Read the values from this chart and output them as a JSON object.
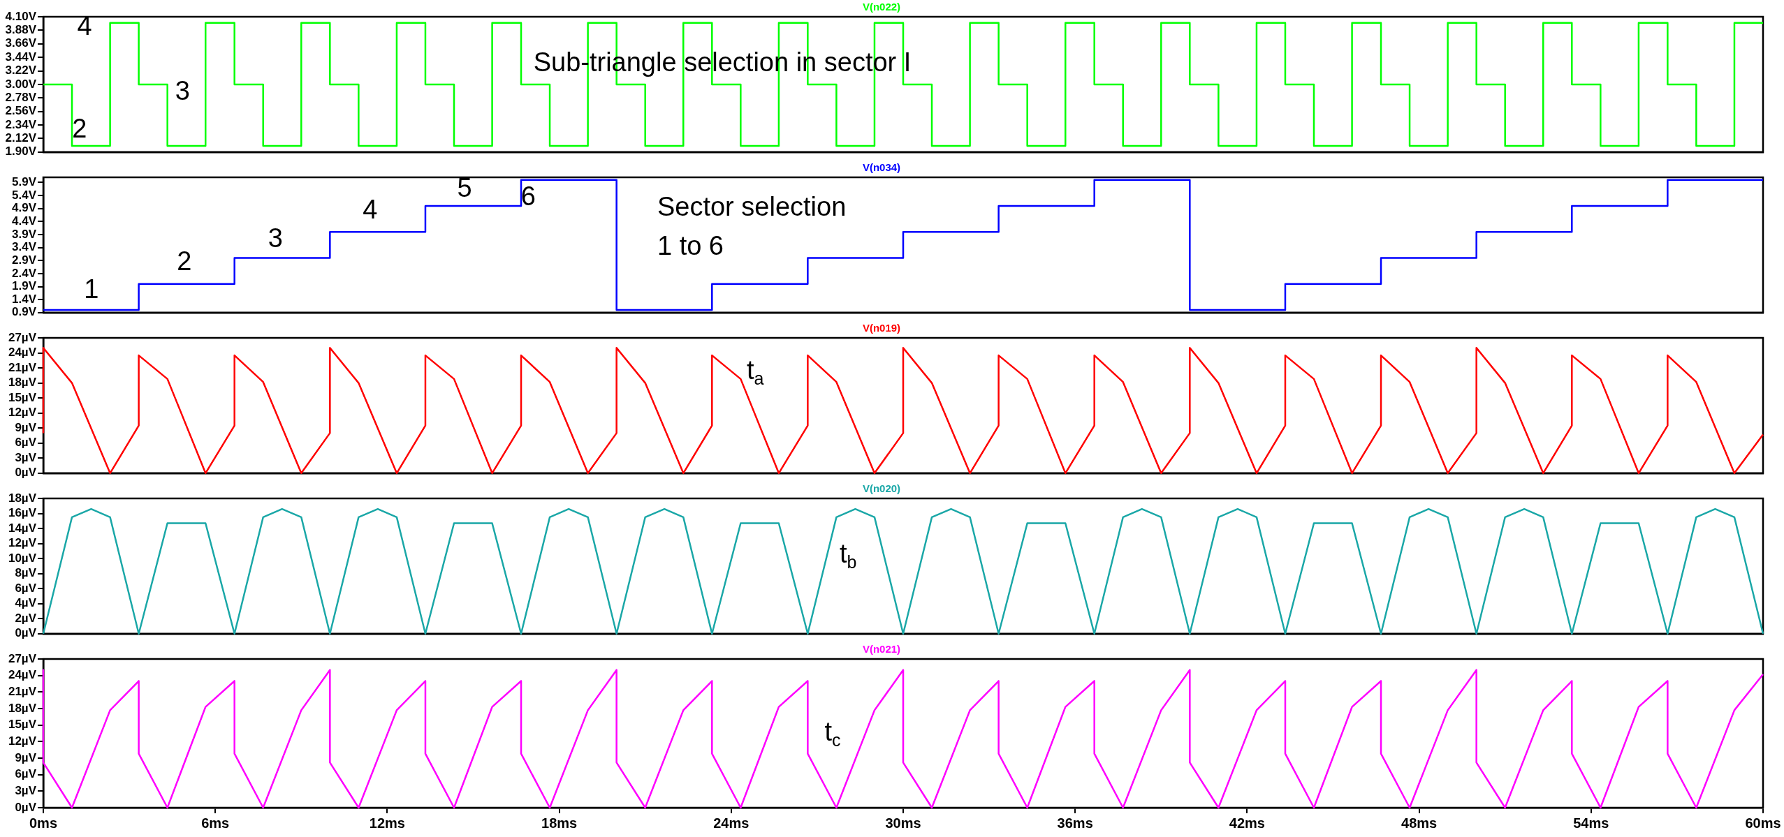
{
  "chart_data": [
    {
      "type": "step",
      "title": "V(n022)",
      "xlim": [
        0,
        60
      ],
      "ylim": [
        1.9,
        4.1
      ],
      "yticks": [
        {
          "value": 1.9,
          "label": "1.90V"
        },
        {
          "value": 2.12,
          "label": "2.12V"
        },
        {
          "value": 2.34,
          "label": "2.34V"
        },
        {
          "value": 2.56,
          "label": "2.56V"
        },
        {
          "value": 2.78,
          "label": "2.78V"
        },
        {
          "value": 3.0,
          "label": "3.00V"
        },
        {
          "value": 3.22,
          "label": "3.22V"
        },
        {
          "value": 3.44,
          "label": "3.44V"
        },
        {
          "value": 3.66,
          "label": "3.66V"
        },
        {
          "value": 3.88,
          "label": "3.88V"
        },
        {
          "value": 4.1,
          "label": "4.10V"
        }
      ],
      "tick_labels": "y",
      "series": [
        {
          "color": "#00ff00",
          "x": [
            0,
            1,
            2.33,
            3.33,
            4.33,
            5.66,
            6.67,
            7.67,
            9,
            10,
            11,
            12.33,
            13.33,
            14.33,
            15.66,
            16.67,
            17.67,
            19,
            20,
            21,
            22.33,
            23.33,
            24.33,
            25.66,
            26.67,
            27.67,
            29,
            30,
            31,
            32.33,
            33.33,
            34.33,
            35.66,
            36.67,
            37.67,
            39,
            40,
            41,
            42.33,
            43.33,
            44.33,
            45.66,
            46.67,
            47.67,
            49,
            50,
            51,
            52.33,
            53.33,
            54.33,
            55.66,
            56.67,
            57.67,
            59,
            60
          ],
          "values": [
            3,
            2,
            4,
            3,
            2,
            4,
            3,
            2,
            4,
            3,
            2,
            4,
            3,
            2,
            4,
            3,
            2,
            4,
            3,
            2,
            4,
            3,
            2,
            4,
            3,
            2,
            4,
            3,
            2,
            4,
            3,
            2,
            4,
            3,
            2,
            4,
            3,
            2,
            4,
            3,
            2,
            4,
            3,
            2,
            4,
            3,
            2,
            4,
            3,
            2,
            4,
            3,
            2,
            4,
            4
          ]
        }
      ],
      "annotations": [
        "Sub-triangle selection in sector I",
        "4",
        "3",
        "2"
      ]
    },
    {
      "type": "step",
      "title": "V(n034)",
      "xlim": [
        0,
        60
      ],
      "ylim": [
        0.9,
        6.1
      ],
      "yticks": [
        {
          "value": 0.9,
          "label": "0.9V"
        },
        {
          "value": 1.4,
          "label": "1.4V"
        },
        {
          "value": 1.9,
          "label": "1.9V"
        },
        {
          "value": 2.4,
          "label": "2.4V"
        },
        {
          "value": 2.9,
          "label": "2.9V"
        },
        {
          "value": 3.4,
          "label": "3.4V"
        },
        {
          "value": 3.9,
          "label": "3.9V"
        },
        {
          "value": 4.4,
          "label": "4.4V"
        },
        {
          "value": 4.9,
          "label": "4.9V"
        },
        {
          "value": 5.4,
          "label": "5.4V"
        },
        {
          "value": 5.9,
          "label": "5.9V"
        }
      ],
      "tick_labels": "y",
      "series": [
        {
          "color": "#0000ff",
          "x": [
            0,
            3.33,
            6.67,
            10,
            13.33,
            16.67,
            20,
            23.33,
            26.67,
            30,
            33.33,
            36.67,
            40,
            43.33,
            46.67,
            50,
            53.33,
            56.67,
            60
          ],
          "values": [
            1,
            2,
            3,
            4,
            5,
            6,
            1,
            2,
            3,
            4,
            5,
            6,
            1,
            2,
            3,
            4,
            5,
            6,
            6
          ]
        }
      ],
      "annotations": [
        "Sector selection\n1 to 6",
        "1",
        "2",
        "3",
        "4",
        "5",
        "6"
      ]
    },
    {
      "type": "line",
      "title": "V(n019)",
      "xlim": [
        0,
        60
      ],
      "ylim": [
        0,
        27
      ],
      "yticks": [
        {
          "value": 0,
          "label": "0µV"
        },
        {
          "value": 3,
          "label": "3µV"
        },
        {
          "value": 6,
          "label": "6µV"
        },
        {
          "value": 9,
          "label": "9µV"
        },
        {
          "value": 12,
          "label": "12µV"
        },
        {
          "value": 15,
          "label": "15µV"
        },
        {
          "value": 18,
          "label": "18µV"
        },
        {
          "value": 21,
          "label": "21µV"
        },
        {
          "value": 24,
          "label": "24µV"
        },
        {
          "value": 27,
          "label": "27µV"
        }
      ],
      "tick_labels": "y",
      "series": [
        {
          "color": "#ff0000",
          "x": [
            0,
            0,
            1,
            2.33,
            3.33,
            3.33,
            4.33,
            5.66,
            6.67,
            6.67,
            7.67,
            9,
            10,
            10,
            11,
            12.33,
            13.33,
            13.33,
            14.33,
            15.66,
            16.67,
            16.67,
            17.67,
            19,
            20,
            20,
            21,
            22.33,
            23.33,
            23.33,
            24.33,
            25.66,
            26.67,
            26.67,
            27.67,
            29,
            30,
            30,
            31,
            32.33,
            33.33,
            33.33,
            34.33,
            35.66,
            36.67,
            36.67,
            37.67,
            39,
            40,
            40,
            41,
            42.33,
            43.33,
            43.33,
            44.33,
            45.66,
            46.67,
            46.67,
            47.67,
            49,
            50,
            50,
            51,
            52.33,
            53.33,
            53.33,
            54.33,
            55.66,
            56.67,
            56.67,
            57.67,
            59,
            60
          ],
          "values": [
            8,
            25,
            18,
            0,
            9.5,
            23.5,
            18.8,
            0,
            9.5,
            23.5,
            18.2,
            0,
            8,
            25,
            18,
            0,
            9.5,
            23.5,
            18.8,
            0,
            9.5,
            23.5,
            18.2,
            0,
            8,
            25,
            18,
            0,
            9.5,
            23.5,
            18.8,
            0,
            9.5,
            23.5,
            18.2,
            0,
            8,
            25,
            18,
            0,
            9.5,
            23.5,
            18.8,
            0,
            9.5,
            23.5,
            18.2,
            0,
            8,
            25,
            18,
            0,
            9.5,
            23.5,
            18.8,
            0,
            9.5,
            23.5,
            18.2,
            0,
            8,
            25,
            18,
            0,
            9.5,
            23.5,
            18.8,
            0,
            9.5,
            23.5,
            18.2,
            0,
            7.7
          ]
        }
      ],
      "annotations": [
        "t$_{a}$"
      ]
    },
    {
      "type": "line",
      "title": "V(n020)",
      "xlim": [
        0,
        60
      ],
      "ylim": [
        0,
        18
      ],
      "yticks": [
        {
          "value": 0,
          "label": "0µV"
        },
        {
          "value": 2,
          "label": "2µV"
        },
        {
          "value": 4,
          "label": "4µV"
        },
        {
          "value": 6,
          "label": "6µV"
        },
        {
          "value": 8,
          "label": "8µV"
        },
        {
          "value": 10,
          "label": "10µV"
        },
        {
          "value": 12,
          "label": "12µV"
        },
        {
          "value": 14,
          "label": "14µV"
        },
        {
          "value": 16,
          "label": "16µV"
        },
        {
          "value": 18,
          "label": "18µV"
        }
      ],
      "tick_labels": "y",
      "series": [
        {
          "color": "#1aa7a7",
          "x": [
            0,
            1,
            1.67,
            2.33,
            3.33,
            4.33,
            5.66,
            6.67,
            7.67,
            8.33,
            9,
            10,
            11,
            11.67,
            12.33,
            13.33,
            14.33,
            15.66,
            16.67,
            17.67,
            18.33,
            19,
            20,
            21,
            21.67,
            22.33,
            23.33,
            24.33,
            25.66,
            26.67,
            27.67,
            28.33,
            29,
            30,
            31,
            31.67,
            32.33,
            33.33,
            34.33,
            35.66,
            36.67,
            37.67,
            38.33,
            39,
            40,
            41,
            41.67,
            42.33,
            43.33,
            44.33,
            45.66,
            46.67,
            47.67,
            48.33,
            49,
            50,
            51,
            51.67,
            52.33,
            53.33,
            54.33,
            55.66,
            56.67,
            57.67,
            58.33,
            59,
            60
          ],
          "values": [
            0,
            15.5,
            16.6,
            15.5,
            0,
            14.7,
            14.7,
            0,
            15.5,
            16.6,
            15.5,
            0,
            15.5,
            16.6,
            15.5,
            0,
            14.7,
            14.7,
            0,
            15.5,
            16.6,
            15.5,
            0,
            15.5,
            16.6,
            15.5,
            0,
            14.7,
            14.7,
            0,
            15.5,
            16.6,
            15.5,
            0,
            15.5,
            16.6,
            15.5,
            0,
            14.7,
            14.7,
            0,
            15.5,
            16.6,
            15.5,
            0,
            15.5,
            16.6,
            15.5,
            0,
            14.7,
            14.7,
            0,
            15.5,
            16.6,
            15.5,
            0,
            15.5,
            16.6,
            15.5,
            0,
            14.7,
            14.7,
            0,
            15.5,
            16.6,
            15.5,
            0
          ]
        }
      ],
      "annotations": [
        "t$_{b}$"
      ]
    },
    {
      "type": "line",
      "title": "V(n021)",
      "xlim": [
        0,
        60
      ],
      "xticks": [
        {
          "value": 0,
          "label": "0ms"
        },
        {
          "value": 6,
          "label": "6ms"
        },
        {
          "value": 12,
          "label": "12ms"
        },
        {
          "value": 18,
          "label": "18ms"
        },
        {
          "value": 24,
          "label": "24ms"
        },
        {
          "value": 30,
          "label": "30ms"
        },
        {
          "value": 36,
          "label": "36ms"
        },
        {
          "value": 42,
          "label": "42ms"
        },
        {
          "value": 48,
          "label": "48ms"
        },
        {
          "value": 54,
          "label": "54ms"
        },
        {
          "value": 60,
          "label": "60ms"
        }
      ],
      "ylim": [
        0,
        27
      ],
      "yticks": [
        {
          "value": 0,
          "label": "0µV"
        },
        {
          "value": 3,
          "label": "3µV"
        },
        {
          "value": 6,
          "label": "6µV"
        },
        {
          "value": 9,
          "label": "9µV"
        },
        {
          "value": 12,
          "label": "12µV"
        },
        {
          "value": 15,
          "label": "15µV"
        },
        {
          "value": 18,
          "label": "18µV"
        },
        {
          "value": 21,
          "label": "21µV"
        },
        {
          "value": 24,
          "label": "24µV"
        },
        {
          "value": 27,
          "label": "27µV"
        }
      ],
      "series": [
        {
          "color": "#ff00ff",
          "x": [
            0,
            0,
            1,
            2.33,
            3.33,
            3.33,
            4.33,
            5.66,
            6.67,
            6.67,
            7.67,
            9,
            10,
            10,
            11,
            12.33,
            13.33,
            13.33,
            14.33,
            15.66,
            16.67,
            16.67,
            17.67,
            19,
            20,
            20,
            21,
            22.33,
            23.33,
            23.33,
            24.33,
            25.66,
            26.67,
            26.67,
            27.67,
            29,
            30,
            30,
            31,
            32.33,
            33.33,
            33.33,
            34.33,
            35.66,
            36.67,
            36.67,
            37.67,
            39,
            40,
            40,
            41,
            42.33,
            43.33,
            43.33,
            44.33,
            45.66,
            46.67,
            46.67,
            47.67,
            49,
            50,
            50,
            51,
            52.33,
            53.33,
            53.33,
            54.33,
            55.66,
            56.67,
            56.67,
            57.67,
            59,
            60
          ],
          "values": [
            25,
            8.2,
            0,
            17.7,
            23,
            9.8,
            0,
            18.3,
            23,
            9.8,
            0,
            17.7,
            25,
            8.2,
            0,
            17.7,
            23,
            9.8,
            0,
            18.3,
            23,
            9.8,
            0,
            17.7,
            25,
            8.2,
            0,
            17.7,
            23,
            9.8,
            0,
            18.3,
            23,
            9.8,
            0,
            17.7,
            25,
            8.2,
            0,
            17.7,
            23,
            9.8,
            0,
            18.3,
            23,
            9.8,
            0,
            17.7,
            25,
            8.2,
            0,
            17.7,
            23,
            9.8,
            0,
            18.3,
            23,
            9.8,
            0,
            17.7,
            25,
            8.2,
            0,
            17.7,
            23,
            9.8,
            0,
            18.3,
            23,
            9.8,
            0,
            17.7,
            24.2
          ]
        }
      ],
      "annotations": [
        "t$_{c}$"
      ]
    }
  ]
}
